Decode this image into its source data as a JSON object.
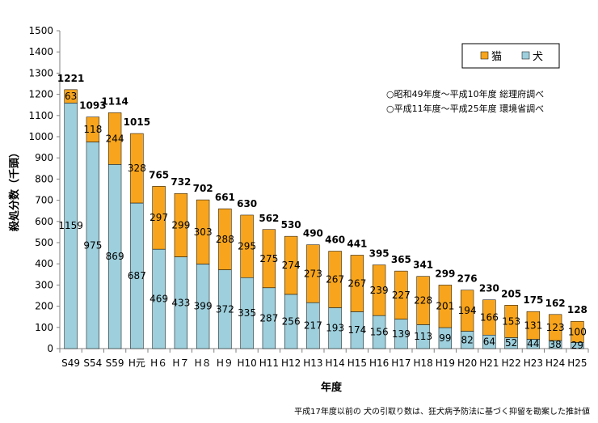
{
  "chart_data": {
    "type": "bar",
    "stacked": true,
    "title": "",
    "xlabel": "年度",
    "ylabel": "殺処分数（千頭）",
    "ylim": [
      0,
      1500
    ],
    "yticks": [
      0,
      100,
      200,
      300,
      400,
      500,
      600,
      700,
      800,
      900,
      1000,
      1100,
      1200,
      1300,
      1400,
      1500
    ],
    "grid": false,
    "legend_position": "top-right",
    "categories": [
      "S49",
      "S54",
      "S59",
      "H元",
      "H６",
      "H７",
      "H８",
      "H９",
      "H10",
      "H11",
      "H12",
      "H13",
      "H14",
      "H15",
      "H16",
      "H17",
      "H18",
      "H19",
      "H20",
      "H21",
      "H22",
      "H23",
      "H24",
      "H25"
    ],
    "series": [
      {
        "name": "犬",
        "color": "#9dcfdc",
        "values": [
          1159,
          975,
          869,
          687,
          469,
          433,
          399,
          372,
          335,
          287,
          256,
          217,
          193,
          174,
          156,
          139,
          113,
          99,
          82,
          64,
          52,
          44,
          38,
          29
        ]
      },
      {
        "name": "猫",
        "color": "#f8a51d",
        "values": [
          63,
          118,
          244,
          328,
          297,
          299,
          303,
          288,
          295,
          275,
          274,
          273,
          267,
          267,
          239,
          227,
          228,
          201,
          194,
          166,
          153,
          131,
          123,
          100
        ]
      }
    ],
    "totals": [
      1221,
      1093,
      1114,
      1015,
      765,
      732,
      702,
      661,
      630,
      562,
      530,
      490,
      460,
      441,
      395,
      365,
      341,
      299,
      276,
      230,
      205,
      175,
      162,
      128
    ],
    "annotations": [
      "○昭和49年度～平成10年度  総理府調べ",
      "○平成11年度～平成25年度  環境省調べ"
    ],
    "footnote": "平成17年度以前の 犬の引取り数は、狂犬病予防法に基づく抑留を勘案した推計値"
  }
}
